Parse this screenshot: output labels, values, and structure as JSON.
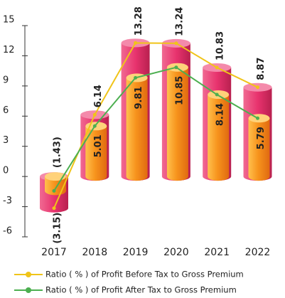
{
  "chart_data": {
    "type": "bar",
    "categories": [
      "2017",
      "2018",
      "2019",
      "2020",
      "2021",
      "2022"
    ],
    "series": [
      {
        "name": "Ratio ( % ) of Profit Before Tax to Gross Premium",
        "color": "#e8336e",
        "line_color": "#f0c419",
        "values": [
          -3.15,
          6.14,
          13.28,
          13.24,
          10.83,
          8.87
        ],
        "value_labels": [
          "(3.15)",
          "6.14",
          "13.28",
          "13.24",
          "10.83",
          "8.87"
        ]
      },
      {
        "name": "Ratio ( % ) of Profit After Tax to Gross Premium",
        "color": "#f7941d",
        "line_color": "#4caf50",
        "values": [
          -1.43,
          5.01,
          9.81,
          10.85,
          8.14,
          5.79
        ],
        "value_labels": [
          "(1.43)",
          "5.01",
          "9.81",
          "10.85",
          "8.14",
          "5.79"
        ]
      }
    ],
    "ylim": [
      -6,
      15
    ],
    "yticks": [
      -6,
      -3,
      0,
      3,
      6,
      9,
      12,
      15
    ]
  }
}
